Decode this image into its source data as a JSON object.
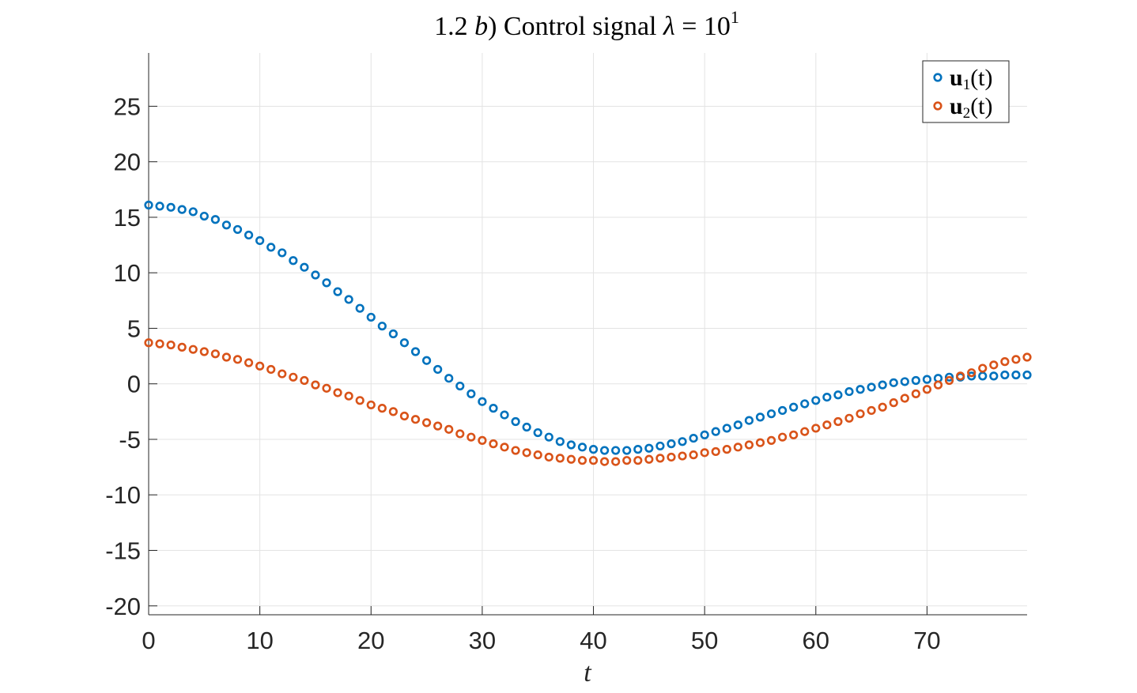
{
  "chart_data": {
    "type": "scatter",
    "title": {
      "prefix": "1.2 ",
      "italic_letter": "b",
      "middle": ") Control signal ",
      "lambda": "λ",
      "eq": " = 10",
      "exponent": "1"
    },
    "xlabel": "t",
    "ylabel": "",
    "xlim": [
      0,
      79
    ],
    "ylim": [
      -20.8,
      29.8
    ],
    "xticks": [
      0,
      10,
      20,
      30,
      40,
      50,
      60,
      70
    ],
    "yticks": [
      -20,
      -15,
      -10,
      -5,
      0,
      5,
      10,
      15,
      20,
      25
    ],
    "xtick_labels": [
      "0",
      "10",
      "20",
      "30",
      "40",
      "50",
      "60",
      "70"
    ],
    "ytick_labels": [
      "-20",
      "-15",
      "-10",
      "-5",
      "0",
      "5",
      "10",
      "15",
      "20",
      "25"
    ],
    "grid": true,
    "legend_position": "top-right",
    "x": [
      0,
      1,
      2,
      3,
      4,
      5,
      6,
      7,
      8,
      9,
      10,
      11,
      12,
      13,
      14,
      15,
      16,
      17,
      18,
      19,
      20,
      21,
      22,
      23,
      24,
      25,
      26,
      27,
      28,
      29,
      30,
      31,
      32,
      33,
      34,
      35,
      36,
      37,
      38,
      39,
      40,
      41,
      42,
      43,
      44,
      45,
      46,
      47,
      48,
      49,
      50,
      51,
      52,
      53,
      54,
      55,
      56,
      57,
      58,
      59,
      60,
      61,
      62,
      63,
      64,
      65,
      66,
      67,
      68,
      69,
      70,
      71,
      72,
      73,
      74,
      75,
      76,
      77,
      78,
      79
    ],
    "series": [
      {
        "name": "u1(t)",
        "legend_bold": "u",
        "legend_sub": "1",
        "legend_tail": "(t)",
        "color": "#0072BD",
        "values": [
          16.1,
          16.0,
          15.9,
          15.7,
          15.5,
          15.1,
          14.8,
          14.3,
          13.9,
          13.4,
          12.9,
          12.3,
          11.8,
          11.1,
          10.5,
          9.8,
          9.1,
          8.3,
          7.6,
          6.8,
          6.0,
          5.2,
          4.5,
          3.7,
          2.9,
          2.1,
          1.3,
          0.5,
          -0.2,
          -0.9,
          -1.6,
          -2.2,
          -2.8,
          -3.4,
          -3.9,
          -4.4,
          -4.8,
          -5.2,
          -5.5,
          -5.7,
          -5.9,
          -6.0,
          -6.0,
          -6.0,
          -5.9,
          -5.8,
          -5.6,
          -5.4,
          -5.2,
          -4.9,
          -4.6,
          -4.3,
          -4.0,
          -3.7,
          -3.3,
          -3.0,
          -2.7,
          -2.4,
          -2.1,
          -1.8,
          -1.5,
          -1.2,
          -1.0,
          -0.7,
          -0.5,
          -0.3,
          -0.1,
          0.1,
          0.2,
          0.3,
          0.4,
          0.5,
          0.6,
          0.6,
          0.7,
          0.7,
          0.7,
          0.8,
          0.8,
          0.8
        ]
      },
      {
        "name": "u2(t)",
        "legend_bold": "u",
        "legend_sub": "2",
        "legend_tail": "(t)",
        "color": "#D95319",
        "values": [
          3.7,
          3.6,
          3.5,
          3.3,
          3.1,
          2.9,
          2.7,
          2.4,
          2.2,
          1.9,
          1.6,
          1.3,
          0.9,
          0.6,
          0.3,
          -0.1,
          -0.4,
          -0.8,
          -1.1,
          -1.5,
          -1.9,
          -2.2,
          -2.5,
          -2.9,
          -3.2,
          -3.5,
          -3.8,
          -4.1,
          -4.5,
          -4.8,
          -5.1,
          -5.4,
          -5.7,
          -6.0,
          -6.2,
          -6.4,
          -6.6,
          -6.7,
          -6.8,
          -6.9,
          -6.9,
          -7.0,
          -7.0,
          -6.9,
          -6.9,
          -6.8,
          -6.7,
          -6.6,
          -6.5,
          -6.4,
          -6.2,
          -6.1,
          -5.9,
          -5.7,
          -5.5,
          -5.3,
          -5.1,
          -4.8,
          -4.6,
          -4.3,
          -4.0,
          -3.7,
          -3.4,
          -3.1,
          -2.7,
          -2.4,
          -2.1,
          -1.7,
          -1.3,
          -0.9,
          -0.5,
          -0.1,
          0.3,
          0.7,
          1.0,
          1.4,
          1.7,
          2.0,
          2.2,
          2.4
        ]
      }
    ]
  }
}
